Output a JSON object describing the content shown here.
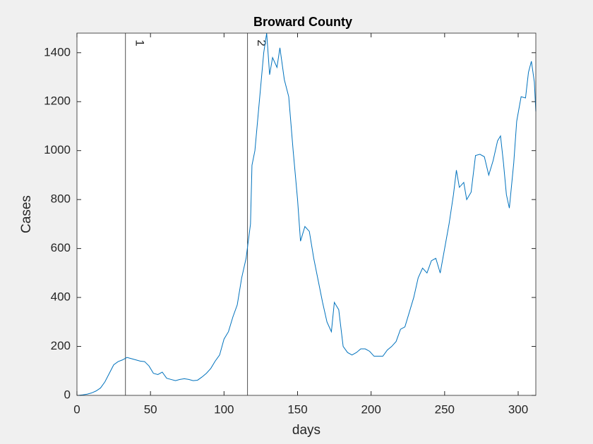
{
  "chart_data": {
    "type": "line",
    "title": "Broward County",
    "x_label": "days",
    "y_label": "Cases",
    "x": [
      1,
      4,
      7,
      10,
      13,
      16,
      19,
      22,
      25,
      28,
      31,
      34,
      37,
      40,
      43,
      46,
      49,
      52,
      55,
      58,
      61,
      64,
      67,
      70,
      73,
      76,
      79,
      82,
      85,
      88,
      91,
      94,
      97,
      100,
      103,
      106,
      109,
      112,
      115,
      118,
      119,
      121,
      124,
      127,
      129,
      131,
      133,
      136,
      138,
      141,
      144,
      147,
      150,
      152,
      155,
      158,
      161,
      164,
      167,
      170,
      173,
      175,
      178,
      181,
      184,
      187,
      190,
      193,
      196,
      199,
      202,
      205,
      208,
      211,
      214,
      217,
      220,
      223,
      226,
      229,
      232,
      235,
      238,
      241,
      244,
      247,
      250,
      253,
      256,
      258,
      260,
      263,
      265,
      268,
      271,
      274,
      277,
      280,
      283,
      286,
      288,
      290,
      292,
      294,
      297,
      299,
      302,
      305,
      307,
      309,
      311,
      312
    ],
    "series": [
      {
        "name": "Cases",
        "color": "#0072bd",
        "values": [
          0,
          2,
          5,
          10,
          18,
          30,
          55,
          90,
          125,
          138,
          145,
          155,
          150,
          145,
          140,
          138,
          120,
          90,
          85,
          95,
          70,
          65,
          60,
          65,
          68,
          65,
          60,
          62,
          75,
          90,
          110,
          140,
          165,
          230,
          260,
          320,
          370,
          480,
          560,
          700,
          940,
          1000,
          1200,
          1400,
          1480,
          1310,
          1380,
          1340,
          1420,
          1290,
          1220,
          1000,
          800,
          630,
          690,
          670,
          560,
          470,
          380,
          300,
          260,
          380,
          350,
          200,
          175,
          165,
          175,
          190,
          190,
          180,
          160,
          160,
          160,
          185,
          200,
          220,
          270,
          280,
          340,
          400,
          480,
          520,
          500,
          550,
          560,
          500,
          600,
          700,
          820,
          920,
          850,
          870,
          800,
          830,
          980,
          985,
          975,
          900,
          960,
          1040,
          1060,
          950,
          820,
          765,
          950,
          1120,
          1220,
          1215,
          1320,
          1365,
          1280,
          1160
        ]
      }
    ],
    "annotations": [
      {
        "x": 33,
        "label": "1"
      },
      {
        "x": 116,
        "label": "2"
      }
    ],
    "xlim": [
      0,
      312
    ],
    "ylim": [
      0,
      1480
    ],
    "xticks": [
      0,
      50,
      100,
      150,
      200,
      250,
      300
    ],
    "yticks": [
      0,
      200,
      400,
      600,
      800,
      1000,
      1200,
      1400
    ]
  }
}
